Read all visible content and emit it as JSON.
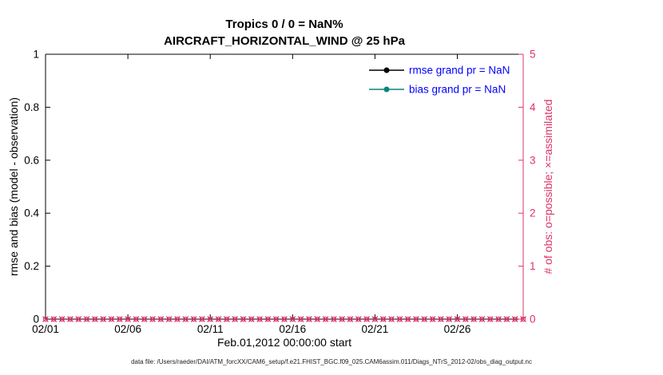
{
  "figure": {
    "title_line1": "Tropics 0 / 0 = NaN%",
    "title_line2": "AIRCRAFT_HORIZONTAL_WIND @ 25 hPa",
    "caption": "data file: /Users/raeder/DAI/ATM_forcXX/CAM6_setup/f.e21.FHIST_BGC.f09_025.CAM6assim.011/Diags_NTrS_2012-02/obs_diag_output.nc"
  },
  "chart_data": {
    "type": "line",
    "title": "Tropics 0 / 0 = NaN%",
    "subtitle": "AIRCRAFT_HORIZONTAL_WIND @ 25 hPa",
    "xlabel": "Feb.01,2012 00:00:00 start",
    "grid": false,
    "x_axis": {
      "range_days": [
        0,
        29
      ],
      "tick_days": [
        0,
        5,
        10,
        15,
        20,
        25
      ],
      "tick_labels": [
        "02/01",
        "02/06",
        "02/11",
        "02/16",
        "02/21",
        "02/26"
      ],
      "color": "#000000"
    },
    "left_axis": {
      "label": "rmse and bias (model - observation)",
      "lim": [
        0,
        1
      ],
      "ticks": [
        0,
        0.2,
        0.4,
        0.6,
        0.8,
        1
      ],
      "tick_labels": [
        "0",
        "0.2",
        "0.4",
        "0.6",
        "0.8",
        "1"
      ],
      "color": "#000000"
    },
    "right_axis": {
      "label": "# of obs: o=possible; ×=assimilated",
      "lim": [
        0,
        5
      ],
      "ticks": [
        0,
        1,
        2,
        3,
        4,
        5
      ],
      "tick_labels": [
        "0",
        "1",
        "2",
        "3",
        "4",
        "5"
      ],
      "color": "#dd3366"
    },
    "series": [
      {
        "name": "rmse grand pr = NaN",
        "color": "#000000",
        "values": []
      },
      {
        "name": "bias grand pr = NaN",
        "color": "#0c847c",
        "values": []
      }
    ],
    "legend": {
      "position": "upper-right",
      "text_color": "#0000ff",
      "entries": [
        "rmse grand pr = NaN",
        "bias grand pr = NaN"
      ]
    },
    "obs_counts": {
      "marker_color": "#dd3366",
      "possible_marker": "o",
      "assimilated_marker": "x",
      "start_day": 0,
      "end_day": 29,
      "step_days": 0.5,
      "value": 0
    }
  }
}
